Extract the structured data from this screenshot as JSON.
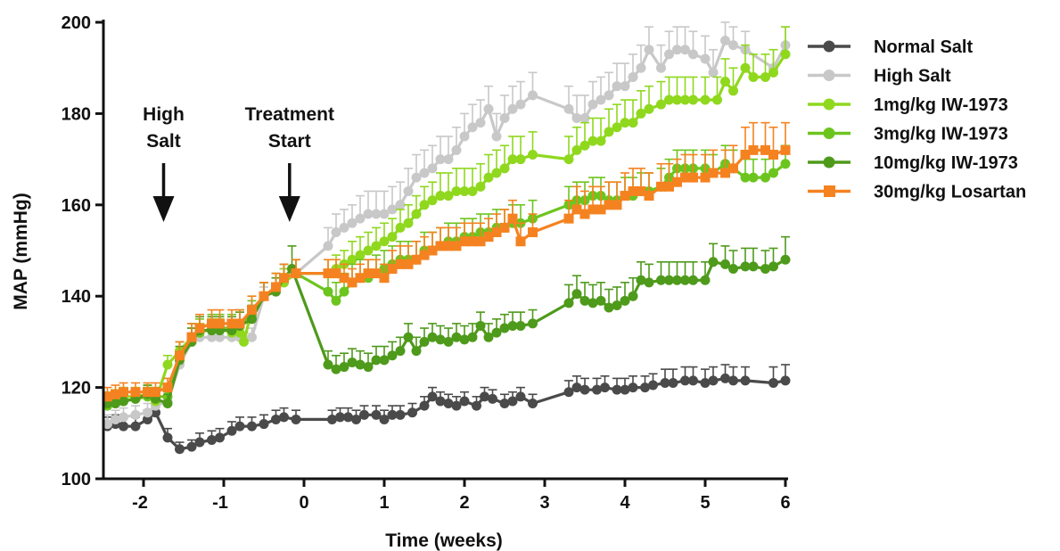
{
  "chart_data": {
    "type": "line",
    "title": "",
    "xlabel": "Time (weeks)",
    "ylabel": "MAP (mmHg)",
    "xlim": [
      -2.5,
      6
    ],
    "ylim": [
      100,
      200
    ],
    "x_ticks": [
      -2,
      -1,
      0,
      1,
      2,
      3,
      4,
      5,
      6
    ],
    "y_ticks": [
      100,
      120,
      140,
      160,
      180,
      200
    ],
    "grid": false,
    "legend_position": "top-right",
    "annotations": [
      {
        "lines": [
          "High",
          "Salt"
        ],
        "arrow_x": -1.75
      },
      {
        "lines": [
          "Treatment",
          "Start"
        ],
        "arrow_x": -0.18
      }
    ],
    "series": [
      {
        "name": "Normal Salt",
        "color": "#4a4a4a",
        "marker": "circle",
        "x": [
          -2.45,
          -2.35,
          -2.25,
          -2.1,
          -1.95,
          -1.85,
          -1.7,
          -1.55,
          -1.4,
          -1.3,
          -1.15,
          -1.05,
          -0.9,
          -0.8,
          -0.65,
          -0.5,
          -0.35,
          -0.25,
          -0.1,
          0.35,
          0.45,
          0.55,
          0.65,
          0.75,
          0.9,
          1.0,
          1.1,
          1.2,
          1.35,
          1.5,
          1.6,
          1.7,
          1.8,
          1.9,
          2.0,
          2.15,
          2.25,
          2.35,
          2.5,
          2.6,
          2.7,
          2.85,
          3.3,
          3.4,
          3.5,
          3.65,
          3.75,
          3.9,
          4.0,
          4.1,
          4.25,
          4.35,
          4.5,
          4.6,
          4.75,
          4.85,
          5.0,
          5.1,
          5.25,
          5.35,
          5.5,
          5.85,
          6.0
        ],
        "y": [
          111.5,
          112,
          111.5,
          111.5,
          113,
          114.5,
          109,
          106.5,
          107,
          108,
          108.5,
          109,
          110.5,
          111.5,
          111.5,
          112,
          113,
          113.5,
          113,
          113,
          113.5,
          113.5,
          113,
          114,
          114,
          113,
          114,
          114,
          114.5,
          116,
          118,
          117,
          116.5,
          116,
          117,
          116,
          118,
          117.5,
          116.5,
          117,
          118,
          116.5,
          119,
          120,
          119.5,
          119.5,
          120,
          119.5,
          119.5,
          120,
          120,
          120.5,
          121,
          121,
          121.5,
          121.5,
          121,
          121.5,
          122,
          121.5,
          121.5,
          121,
          121.5
        ],
        "err": [
          2,
          2,
          2,
          2,
          2,
          2,
          2,
          1.5,
          1.5,
          2,
          2,
          2,
          2,
          2,
          2,
          2,
          2,
          2,
          2,
          2,
          2,
          2,
          2,
          2,
          2,
          2,
          2,
          2,
          2,
          2,
          2,
          2,
          2,
          2,
          2,
          2,
          2,
          2,
          2,
          2,
          2,
          2,
          2.5,
          2.5,
          2.5,
          2.5,
          2.5,
          2.5,
          2.5,
          2.5,
          2.5,
          2.5,
          3,
          3,
          3,
          3,
          3,
          3,
          3,
          3,
          3,
          3.5,
          3.5
        ]
      },
      {
        "name": "High Salt",
        "color": "#c8c8c8",
        "marker": "circle",
        "x": [
          -2.45,
          -2.35,
          -2.25,
          -2.1,
          -1.95,
          -1.85,
          -1.7,
          -1.55,
          -1.4,
          -1.3,
          -1.15,
          -1.05,
          -0.9,
          -0.8,
          -0.65,
          -0.5,
          -0.35,
          -0.25,
          -0.1,
          0.3,
          0.4,
          0.5,
          0.6,
          0.7,
          0.8,
          0.9,
          1.0,
          1.1,
          1.2,
          1.3,
          1.4,
          1.5,
          1.6,
          1.7,
          1.8,
          1.9,
          2.0,
          2.1,
          2.2,
          2.3,
          2.4,
          2.5,
          2.6,
          2.7,
          2.85,
          3.3,
          3.4,
          3.5,
          3.6,
          3.7,
          3.8,
          3.9,
          4.0,
          4.1,
          4.2,
          4.3,
          4.45,
          4.55,
          4.65,
          4.75,
          4.85,
          5.0,
          5.1,
          5.25,
          5.35,
          5.5,
          5.85,
          6.0
        ],
        "y": [
          112,
          113,
          113.5,
          114,
          114.5,
          116,
          117,
          125,
          130,
          131,
          131,
          131,
          131,
          131,
          131,
          140,
          141,
          143,
          145,
          151,
          154,
          155,
          156,
          157,
          158,
          158,
          158,
          159,
          160,
          163,
          166,
          167,
          168,
          170,
          170,
          172,
          175,
          177,
          178,
          181,
          175,
          179,
          181,
          182,
          184,
          181,
          179,
          179,
          182,
          183,
          184,
          186,
          186,
          188,
          190,
          194,
          190,
          193,
          194,
          194,
          193,
          192,
          189,
          196,
          195,
          194,
          190,
          195
        ],
        "err": [
          2,
          2,
          2,
          2,
          2,
          2,
          2,
          2,
          2,
          2,
          2,
          2,
          2,
          2,
          2,
          2,
          3,
          3,
          3,
          4,
          4,
          4,
          4,
          5,
          5,
          5,
          5,
          5,
          5,
          5,
          5,
          5,
          5,
          5,
          5,
          5,
          5,
          5,
          5,
          5,
          5,
          5,
          5,
          5,
          5,
          5,
          5,
          5,
          5,
          5,
          5,
          5,
          5,
          5,
          5,
          5,
          5,
          5,
          5,
          5,
          5,
          5,
          5,
          4,
          4,
          4,
          4,
          4
        ]
      },
      {
        "name": "1mg/kg IW-1973",
        "color": "#8fd81e",
        "marker": "circle",
        "x": [
          -2.45,
          -2.35,
          -2.25,
          -2.1,
          -1.95,
          -1.85,
          -1.7,
          -1.55,
          -1.4,
          -1.3,
          -1.15,
          -1.05,
          -0.9,
          -0.8,
          -0.75,
          -0.65,
          -0.5,
          -0.35,
          -0.25,
          -0.1,
          0.3,
          0.4,
          0.5,
          0.6,
          0.7,
          0.8,
          0.9,
          1.0,
          1.1,
          1.2,
          1.3,
          1.4,
          1.5,
          1.6,
          1.7,
          1.8,
          1.9,
          2.0,
          2.1,
          2.2,
          2.3,
          2.4,
          2.5,
          2.6,
          2.7,
          2.85,
          3.3,
          3.4,
          3.5,
          3.6,
          3.7,
          3.8,
          3.9,
          4.0,
          4.1,
          4.2,
          4.3,
          4.45,
          4.55,
          4.65,
          4.75,
          4.85,
          5.0,
          5.15,
          5.25,
          5.35,
          5.5,
          5.6,
          5.75,
          5.85,
          6.0
        ],
        "y": [
          117,
          117.5,
          118,
          118,
          118.5,
          117,
          125,
          128,
          131,
          132,
          133,
          133,
          132,
          132,
          130,
          137,
          140,
          142,
          143,
          145,
          145,
          146,
          147,
          148,
          149,
          150,
          151,
          152,
          153,
          155,
          156,
          158,
          160,
          161,
          162,
          162,
          163,
          163,
          163,
          164,
          166,
          167,
          168,
          170,
          170,
          171,
          170,
          172,
          173,
          174,
          174,
          176,
          177,
          178,
          178,
          180,
          181,
          182,
          183,
          183,
          183,
          183,
          183,
          183,
          187,
          185,
          190,
          188,
          188,
          189,
          193
        ],
        "err": [
          2,
          2,
          2,
          2,
          2,
          2,
          2,
          2,
          2,
          2,
          2,
          2,
          2,
          2,
          2,
          3,
          3,
          3,
          3,
          3,
          3,
          3,
          3,
          4,
          4,
          4,
          4,
          4,
          4,
          4,
          4,
          4,
          4,
          4,
          5,
          5,
          5,
          5,
          5,
          5,
          5,
          5,
          5,
          5,
          5,
          5,
          5,
          5,
          5,
          5,
          5,
          5,
          5,
          5,
          5,
          5,
          5,
          5,
          5,
          5,
          5,
          5,
          5,
          5,
          5,
          5,
          5,
          5,
          5,
          5,
          6
        ]
      },
      {
        "name": "3mg/kg IW-1973",
        "color": "#6cc51e",
        "marker": "circle",
        "x": [
          -2.45,
          -2.35,
          -2.25,
          -2.1,
          -1.95,
          -1.85,
          -1.7,
          -1.55,
          -1.4,
          -1.3,
          -1.15,
          -1.05,
          -0.9,
          -0.8,
          -0.65,
          -0.5,
          -0.35,
          -0.25,
          -0.1,
          0.3,
          0.4,
          0.5,
          0.6,
          0.7,
          0.8,
          0.9,
          1.0,
          1.1,
          1.2,
          1.3,
          1.4,
          1.5,
          1.6,
          1.7,
          1.8,
          1.9,
          2.0,
          2.1,
          2.2,
          2.3,
          2.4,
          2.5,
          2.6,
          2.7,
          2.85,
          3.3,
          3.4,
          3.5,
          3.6,
          3.7,
          3.8,
          3.9,
          4.0,
          4.1,
          4.2,
          4.3,
          4.45,
          4.55,
          4.65,
          4.75,
          4.85,
          5.0,
          5.1,
          5.25,
          5.35,
          5.5,
          5.6,
          5.75,
          5.85,
          6.0
        ],
        "y": [
          116,
          116.5,
          117,
          117.5,
          118,
          118,
          118,
          127,
          131,
          132,
          133,
          133,
          133,
          134,
          136,
          140,
          142,
          144,
          145,
          141,
          139,
          141,
          143,
          144,
          144,
          145,
          146,
          147,
          148,
          148,
          148,
          150,
          150,
          151,
          152,
          152,
          153,
          153,
          154,
          154,
          155,
          155,
          156,
          156,
          157,
          160,
          161,
          161,
          162,
          162,
          161,
          161,
          162,
          162,
          163,
          163,
          164,
          166,
          168,
          168,
          168,
          168,
          167,
          169,
          168,
          166,
          166,
          166,
          167,
          169
        ],
        "err": [
          2,
          2,
          2,
          2,
          2,
          2,
          2,
          3,
          3,
          3,
          3,
          3,
          3,
          3,
          3,
          3,
          3,
          3,
          3,
          4,
          4,
          4,
          4,
          4,
          4,
          4,
          4,
          4,
          4,
          4,
          4,
          4,
          4,
          4,
          4,
          4,
          4,
          4,
          4,
          4,
          4,
          4,
          4,
          4,
          4,
          4,
          4,
          4,
          4,
          4,
          4,
          4,
          4,
          4,
          4,
          4,
          4,
          4,
          4,
          4,
          4,
          4,
          4,
          4,
          4,
          4,
          4,
          4,
          4,
          4
        ]
      },
      {
        "name": "10mg/kg IW-1973",
        "color": "#4e9a1b",
        "marker": "circle",
        "x": [
          -2.45,
          -2.35,
          -2.25,
          -2.1,
          -1.95,
          -1.85,
          -1.7,
          -1.55,
          -1.4,
          -1.3,
          -1.15,
          -1.05,
          -0.9,
          -0.8,
          -0.65,
          -0.5,
          -0.35,
          -0.25,
          -0.15,
          0.3,
          0.4,
          0.5,
          0.6,
          0.7,
          0.8,
          0.9,
          1.0,
          1.1,
          1.2,
          1.3,
          1.4,
          1.5,
          1.6,
          1.7,
          1.8,
          1.9,
          2.0,
          2.1,
          2.2,
          2.3,
          2.4,
          2.5,
          2.6,
          2.7,
          2.85,
          3.3,
          3.4,
          3.5,
          3.6,
          3.7,
          3.8,
          3.9,
          4.0,
          4.1,
          4.2,
          4.3,
          4.45,
          4.55,
          4.65,
          4.75,
          4.85,
          5.0,
          5.1,
          5.25,
          5.35,
          5.5,
          5.6,
          5.75,
          5.85,
          6.0
        ],
        "y": [
          116.5,
          116.5,
          117,
          117.5,
          118.5,
          117.5,
          116.5,
          126,
          130,
          132.5,
          132.5,
          132.5,
          132.5,
          133.5,
          135,
          140,
          141,
          144,
          146,
          125,
          124,
          124.5,
          125.5,
          125,
          124.5,
          126,
          126,
          127,
          128,
          131,
          128,
          130,
          131,
          130.5,
          130,
          131,
          130.5,
          131,
          133.5,
          131,
          132,
          133,
          133.5,
          133.5,
          134,
          138.5,
          140.5,
          139,
          138.5,
          139,
          137.5,
          138,
          139,
          140,
          143.5,
          143,
          143.5,
          143.5,
          143.5,
          143.5,
          143.5,
          143.5,
          147.5,
          147,
          146,
          146.5,
          146.5,
          146,
          146.5,
          148
        ],
        "err": [
          2,
          2,
          2,
          2,
          2,
          2,
          2,
          3,
          3,
          3,
          3,
          3,
          3,
          3,
          3,
          3,
          3,
          3,
          5,
          3,
          3,
          3,
          3,
          3,
          3,
          3,
          3,
          3,
          3,
          3,
          3,
          3,
          3,
          3,
          3,
          3,
          3,
          3,
          3,
          3,
          3,
          3,
          3,
          3,
          3,
          4,
          4,
          4,
          4,
          4,
          4,
          4,
          4,
          4,
          4,
          4,
          4,
          4,
          4,
          4,
          4,
          4,
          4,
          4,
          4,
          4,
          4,
          4,
          4,
          5
        ]
      },
      {
        "name": "30mg/kg Losartan",
        "color": "#f58220",
        "marker": "square",
        "x": [
          -2.45,
          -2.35,
          -2.25,
          -2.1,
          -1.95,
          -1.85,
          -1.7,
          -1.55,
          -1.4,
          -1.3,
          -1.15,
          -1.05,
          -0.9,
          -0.8,
          -0.65,
          -0.5,
          -0.35,
          -0.25,
          -0.1,
          0.3,
          0.4,
          0.5,
          0.6,
          0.7,
          0.8,
          0.9,
          1.0,
          1.1,
          1.2,
          1.3,
          1.4,
          1.5,
          1.6,
          1.7,
          1.8,
          1.9,
          2.0,
          2.1,
          2.2,
          2.3,
          2.4,
          2.5,
          2.6,
          2.7,
          2.85,
          3.3,
          3.4,
          3.5,
          3.6,
          3.7,
          3.8,
          3.9,
          4.0,
          4.1,
          4.2,
          4.3,
          4.45,
          4.55,
          4.65,
          4.75,
          4.85,
          5.0,
          5.1,
          5.25,
          5.35,
          5.5,
          5.6,
          5.75,
          5.85,
          6.0
        ],
        "y": [
          118,
          118.5,
          119,
          119,
          119,
          119,
          120,
          127,
          131,
          133,
          134,
          134,
          134,
          134,
          137,
          140,
          142,
          144,
          145,
          145,
          145,
          144,
          143,
          144,
          145,
          145,
          144,
          146,
          147,
          147,
          148,
          149,
          150,
          151,
          151,
          151,
          152,
          152,
          152,
          153,
          154,
          155,
          157,
          152,
          154,
          157,
          159,
          158,
          159,
          159,
          160,
          160,
          162,
          163,
          163,
          162,
          164,
          164,
          165,
          166,
          166,
          166,
          167,
          167,
          168,
          171,
          172,
          172,
          171,
          172
        ],
        "err": [
          2,
          2,
          2,
          2,
          2,
          2,
          2,
          3,
          3,
          3,
          3,
          3,
          3,
          3,
          3,
          3,
          3,
          3,
          3,
          3,
          3,
          3,
          3,
          3,
          3,
          3,
          3,
          4,
          4,
          4,
          4,
          4,
          4,
          4,
          4,
          4,
          4,
          4,
          4,
          4,
          4,
          4,
          4,
          4,
          4,
          4,
          5,
          5,
          5,
          5,
          5,
          5,
          5,
          5,
          5,
          5,
          5,
          5,
          5,
          5,
          5,
          5,
          5,
          5,
          5,
          6,
          6,
          6,
          6,
          6
        ]
      }
    ]
  }
}
